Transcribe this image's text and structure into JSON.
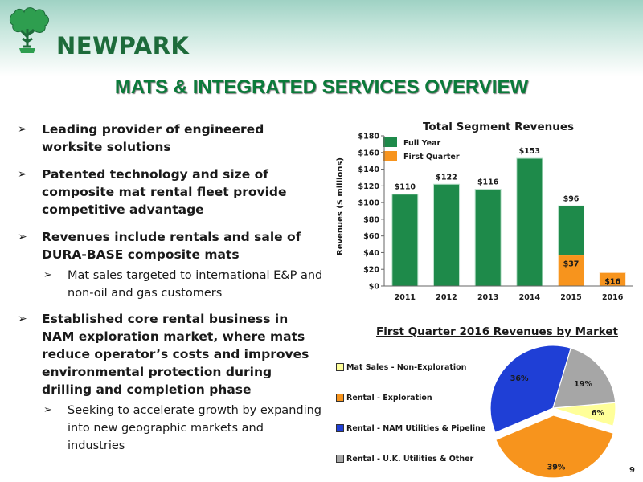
{
  "logo": {
    "text": "NEWPARK",
    "icon": "tree-icon"
  },
  "title": "MATS & INTEGRATED SERVICES OVERVIEW",
  "bullets": [
    {
      "text": "Leading provider of engineered worksite solutions",
      "sub": []
    },
    {
      "text": "Patented technology and size of composite mat rental fleet provide competitive advantage",
      "sub": []
    },
    {
      "text": "Revenues include rentals and sale of DURA-BASE composite mats",
      "sub": [
        "Mat sales targeted to international E&P and non-oil and gas customers"
      ]
    },
    {
      "text": "Established core rental business in NAM exploration market, where mats reduce operator’s costs and improves environmental protection during drilling and completion phase",
      "sub": [
        "Seeking to accelerate growth by expanding into new geographic markets and industries"
      ]
    }
  ],
  "chart_data": [
    {
      "type": "bar",
      "title": "Total Segment Revenues",
      "ylabel": "Revenues ($ millions)",
      "xlabel": "",
      "ylim": [
        0,
        180
      ],
      "yticks": [
        "$0",
        "$20",
        "$40",
        "$60",
        "$80",
        "$100",
        "$120",
        "$140",
        "$160",
        "$180"
      ],
      "categories": [
        "2011",
        "2012",
        "2013",
        "2014",
        "2015",
        "2016"
      ],
      "series": [
        {
          "name": "Full Year",
          "color": "#1e8a4a",
          "values": [
            110,
            122,
            116,
            153,
            96,
            null
          ],
          "labels": [
            "$110",
            "$122",
            "$116",
            "$153",
            "$96",
            ""
          ]
        },
        {
          "name": "First Quarter",
          "color": "#f7941d",
          "values": [
            null,
            null,
            null,
            null,
            37,
            16
          ],
          "labels": [
            "",
            "",
            "",
            "",
            "$37",
            "$16"
          ]
        }
      ],
      "legend": "top-left",
      "grid": false
    },
    {
      "type": "pie",
      "title": "First Quarter 2016 Revenues by Market",
      "slices": [
        {
          "name": "Mat Sales - Non-Exploration",
          "value": 6,
          "label": "6%",
          "color": "#ffff99"
        },
        {
          "name": "Rental - Exploration",
          "value": 39,
          "label": "39%",
          "color": "#f7941d"
        },
        {
          "name": "Rental - NAM Utilities & Pipeline",
          "value": 36,
          "label": "36%",
          "color": "#1f3fd6"
        },
        {
          "name": "Rental - U.K. Utilities & Other",
          "value": 19,
          "label": "19%",
          "color": "#a6a6a6"
        }
      ],
      "legend": "left"
    }
  ],
  "page_number": "9"
}
